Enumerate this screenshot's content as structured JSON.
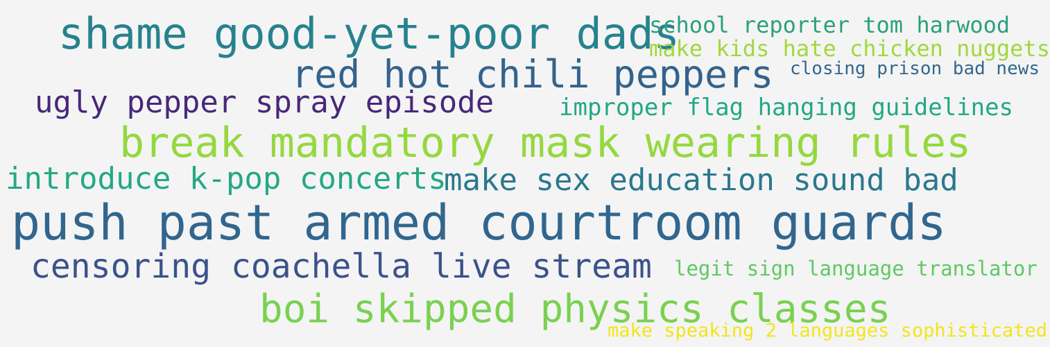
{
  "words": [
    {
      "text": "shame good-yet-poor dads",
      "color": "#26828e"
    },
    {
      "text": "school reporter tom harwood",
      "color": "#2ca07e"
    },
    {
      "text": "make kids hate chicken nuggets",
      "color": "#a2d83e"
    },
    {
      "text": "red hot chili peppers",
      "color": "#33638d"
    },
    {
      "text": "closing prison bad news",
      "color": "#31688e"
    },
    {
      "text": "ugly pepper spray episode",
      "color": "#482878"
    },
    {
      "text": "improper flag hanging guidelines",
      "color": "#22a884"
    },
    {
      "text": "break mandatory mask wearing rules",
      "color": "#95d840"
    },
    {
      "text": "introduce k-pop concerts",
      "color": "#24a885"
    },
    {
      "text": "make sex education sound bad",
      "color": "#2a788e"
    },
    {
      "text": "push past armed courtroom guards",
      "color": "#31668e"
    },
    {
      "text": "censoring coachella live stream",
      "color": "#3b528b"
    },
    {
      "text": "legit sign language translator",
      "color": "#5ec962"
    },
    {
      "text": "boi skipped physics classes",
      "color": "#7ad151"
    },
    {
      "text": "make speaking 2 languages sophisticated",
      "color": "#f2e51d"
    }
  ]
}
